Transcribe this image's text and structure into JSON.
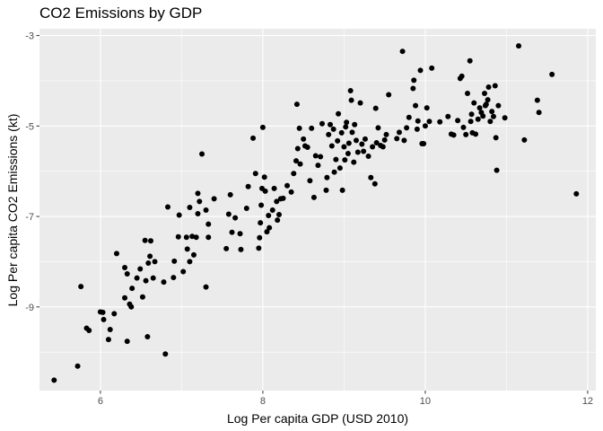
{
  "chart_data": {
    "type": "scatter",
    "title": "CO2 Emissions by GDP",
    "xlabel": "Log Per capita GDP (USD 2010)",
    "ylabel": "Log Per capita CO2 Emissions (kt)",
    "xlim": [
      5.25,
      12.1
    ],
    "ylim": [
      -10.85,
      -2.85
    ],
    "x_ticks": [
      6,
      8,
      10,
      12
    ],
    "y_ticks": [
      -9,
      -7,
      -5,
      -3
    ],
    "x_tick_labels": [
      "6",
      "8",
      "10",
      "12"
    ],
    "y_tick_labels": [
      "-9",
      "-7",
      "-5",
      "-3"
    ],
    "grid": true,
    "legend": "none",
    "background_color": "#ebebeb",
    "grid_color": "#ffffff",
    "point_color": "#000000",
    "points": [
      [
        5.43,
        -10.62
      ],
      [
        5.72,
        -10.31
      ],
      [
        5.76,
        -8.55
      ],
      [
        5.83,
        -9.47
      ],
      [
        5.86,
        -9.52
      ],
      [
        6.0,
        -9.11
      ],
      [
        6.03,
        -9.12
      ],
      [
        6.04,
        -9.28
      ],
      [
        6.1,
        -9.72
      ],
      [
        6.12,
        -9.5
      ],
      [
        6.2,
        -7.82
      ],
      [
        6.17,
        -9.15
      ],
      [
        6.3,
        -8.8
      ],
      [
        6.3,
        -8.13
      ],
      [
        6.33,
        -8.27
      ],
      [
        6.36,
        -8.94
      ],
      [
        6.38,
        -9.0
      ],
      [
        6.39,
        -8.59
      ],
      [
        6.33,
        -9.76
      ],
      [
        6.45,
        -8.36
      ],
      [
        6.49,
        -8.16
      ],
      [
        6.52,
        -8.78
      ],
      [
        6.56,
        -8.42
      ],
      [
        6.55,
        -7.53
      ],
      [
        6.62,
        -7.54
      ],
      [
        6.58,
        -9.66
      ],
      [
        6.59,
        -8.03
      ],
      [
        6.61,
        -7.88
      ],
      [
        6.65,
        -8.36
      ],
      [
        6.67,
        -8.0
      ],
      [
        6.78,
        -8.45
      ],
      [
        6.83,
        -6.79
      ],
      [
        6.8,
        -10.04
      ],
      [
        6.91,
        -7.99
      ],
      [
        6.9,
        -8.35
      ],
      [
        6.96,
        -7.45
      ],
      [
        6.97,
        -6.97
      ],
      [
        7.02,
        -8.22
      ],
      [
        7.07,
        -7.72
      ],
      [
        7.06,
        -7.46
      ],
      [
        7.1,
        -6.8
      ],
      [
        7.1,
        -8.0
      ],
      [
        7.13,
        -7.44
      ],
      [
        7.15,
        -7.85
      ],
      [
        7.18,
        -7.46
      ],
      [
        7.2,
        -6.49
      ],
      [
        7.22,
        -6.67
      ],
      [
        7.25,
        -5.62
      ],
      [
        7.2,
        -6.94
      ],
      [
        7.3,
        -6.86
      ],
      [
        7.33,
        -7.46
      ],
      [
        7.33,
        -7.17
      ],
      [
        7.3,
        -8.56
      ],
      [
        7.4,
        -6.61
      ],
      [
        7.55,
        -7.71
      ],
      [
        7.58,
        -6.95
      ],
      [
        7.6,
        -6.52
      ],
      [
        7.62,
        -7.35
      ],
      [
        7.66,
        -7.03
      ],
      [
        7.72,
        -7.38
      ],
      [
        7.73,
        -7.73
      ],
      [
        7.8,
        -6.82
      ],
      [
        7.82,
        -6.34
      ],
      [
        7.88,
        -5.27
      ],
      [
        7.91,
        -6.05
      ],
      [
        7.95,
        -7.7
      ],
      [
        7.96,
        -7.47
      ],
      [
        7.97,
        -7.14
      ],
      [
        7.98,
        -6.75
      ],
      [
        7.99,
        -6.38
      ],
      [
        8.0,
        -5.03
      ],
      [
        8.02,
        -6.13
      ],
      [
        8.03,
        -6.44
      ],
      [
        8.05,
        -7.34
      ],
      [
        8.07,
        -6.98
      ],
      [
        8.08,
        -7.25
      ],
      [
        8.12,
        -6.86
      ],
      [
        8.14,
        -6.38
      ],
      [
        8.17,
        -6.67
      ],
      [
        8.18,
        -7.08
      ],
      [
        8.2,
        -6.96
      ],
      [
        8.22,
        -6.61
      ],
      [
        8.25,
        -6.6
      ],
      [
        8.3,
        -6.32
      ],
      [
        8.35,
        -6.46
      ],
      [
        8.38,
        -6.05
      ],
      [
        8.41,
        -5.77
      ],
      [
        8.43,
        -5.5
      ],
      [
        8.42,
        -4.52
      ],
      [
        8.45,
        -5.05
      ],
      [
        8.46,
        -5.84
      ],
      [
        8.5,
        -5.29
      ],
      [
        8.52,
        -5.44
      ],
      [
        8.55,
        -5.47
      ],
      [
        8.58,
        -6.21
      ],
      [
        8.6,
        -5.05
      ],
      [
        8.63,
        -6.58
      ],
      [
        8.65,
        -5.66
      ],
      [
        8.68,
        -5.87
      ],
      [
        8.71,
        -5.68
      ],
      [
        8.73,
        -4.95
      ],
      [
        8.78,
        -6.42
      ],
      [
        8.79,
        -6.14
      ],
      [
        8.81,
        -5.19
      ],
      [
        8.83,
        -4.97
      ],
      [
        8.85,
        -5.44
      ],
      [
        8.87,
        -5.07
      ],
      [
        8.88,
        -6.02
      ],
      [
        8.9,
        -5.74
      ],
      [
        8.92,
        -5.33
      ],
      [
        8.93,
        -4.73
      ],
      [
        8.95,
        -5.93
      ],
      [
        8.97,
        -5.15
      ],
      [
        8.98,
        -6.42
      ],
      [
        9.0,
        -5.46
      ],
      [
        9.01,
        -5.75
      ],
      [
        9.02,
        -5.02
      ],
      [
        9.03,
        -4.92
      ],
      [
        9.05,
        -5.61
      ],
      [
        9.06,
        -5.38
      ],
      [
        9.08,
        -4.22
      ],
      [
        9.09,
        -4.43
      ],
      [
        9.1,
        -5.14
      ],
      [
        9.12,
        -5.8
      ],
      [
        9.13,
        -4.97
      ],
      [
        9.15,
        -5.32
      ],
      [
        9.17,
        -5.58
      ],
      [
        9.2,
        -4.49
      ],
      [
        9.22,
        -5.4
      ],
      [
        9.24,
        -5.56
      ],
      [
        9.26,
        -5.29
      ],
      [
        9.3,
        -5.67
      ],
      [
        9.33,
        -6.14
      ],
      [
        9.35,
        -5.46
      ],
      [
        9.38,
        -6.28
      ],
      [
        9.39,
        -4.61
      ],
      [
        9.4,
        -5.37
      ],
      [
        9.42,
        -5.04
      ],
      [
        9.45,
        -5.43
      ],
      [
        9.48,
        -5.46
      ],
      [
        9.5,
        -5.31
      ],
      [
        9.52,
        -5.19
      ],
      [
        9.55,
        -4.31
      ],
      [
        9.65,
        -5.28
      ],
      [
        9.68,
        -5.14
      ],
      [
        9.72,
        -3.35
      ],
      [
        9.74,
        -5.32
      ],
      [
        9.77,
        -5.04
      ],
      [
        9.8,
        -4.81
      ],
      [
        9.85,
        -4.17
      ],
      [
        9.86,
        -3.99
      ],
      [
        9.88,
        -4.55
      ],
      [
        9.9,
        -5.07
      ],
      [
        9.91,
        -4.89
      ],
      [
        9.94,
        -3.77
      ],
      [
        9.96,
        -5.39
      ],
      [
        9.98,
        -5.39
      ],
      [
        10.0,
        -5.0
      ],
      [
        10.02,
        -4.6
      ],
      [
        10.05,
        -4.9
      ],
      [
        10.08,
        -3.72
      ],
      [
        10.18,
        -4.91
      ],
      [
        10.28,
        -4.79
      ],
      [
        10.32,
        -5.18
      ],
      [
        10.35,
        -5.2
      ],
      [
        10.4,
        -4.88
      ],
      [
        10.43,
        -3.95
      ],
      [
        10.45,
        -3.9
      ],
      [
        10.47,
        -5.03
      ],
      [
        10.5,
        -5.19
      ],
      [
        10.52,
        -4.28
      ],
      [
        10.55,
        -3.56
      ],
      [
        10.56,
        -4.9
      ],
      [
        10.57,
        -4.74
      ],
      [
        10.58,
        -5.15
      ],
      [
        10.6,
        -4.49
      ],
      [
        10.62,
        -5.18
      ],
      [
        10.65,
        -4.85
      ],
      [
        10.67,
        -4.6
      ],
      [
        10.69,
        -4.7
      ],
      [
        10.71,
        -4.78
      ],
      [
        10.73,
        -4.28
      ],
      [
        10.74,
        -4.55
      ],
      [
        10.75,
        -4.52
      ],
      [
        10.77,
        -4.42
      ],
      [
        10.78,
        -4.14
      ],
      [
        10.8,
        -4.9
      ],
      [
        10.82,
        -4.68
      ],
      [
        10.84,
        -4.79
      ],
      [
        10.86,
        -4.11
      ],
      [
        10.87,
        -5.26
      ],
      [
        10.88,
        -5.98
      ],
      [
        10.9,
        -4.55
      ],
      [
        10.98,
        -4.82
      ],
      [
        11.15,
        -3.23
      ],
      [
        11.22,
        -5.31
      ],
      [
        11.38,
        -4.43
      ],
      [
        11.4,
        -4.7
      ],
      [
        11.56,
        -3.86
      ],
      [
        11.86,
        -6.5
      ]
    ]
  }
}
